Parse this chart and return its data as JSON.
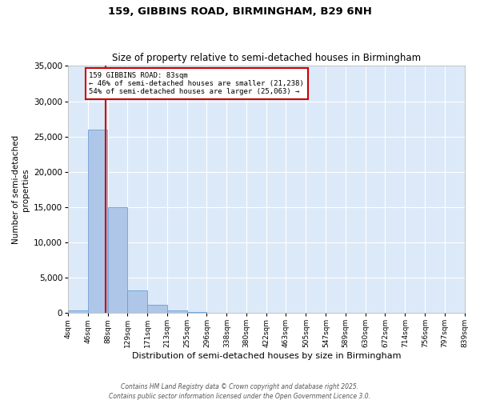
{
  "title_line1": "159, GIBBINS ROAD, BIRMINGHAM, B29 6NH",
  "title_line2": "Size of property relative to semi-detached houses in Birmingham",
  "xlabel": "Distribution of semi-detached houses by size in Birmingham",
  "ylabel": "Number of semi-detached\nproperties",
  "annotation_title": "159 GIBBINS ROAD: 83sqm",
  "annotation_line2": "← 46% of semi-detached houses are smaller (21,238)",
  "annotation_line3": "54% of semi-detached houses are larger (25,063) →",
  "property_size": 83,
  "bin_edges": [
    4,
    46,
    88,
    129,
    171,
    213,
    255,
    296,
    338,
    380,
    422,
    463,
    505,
    547,
    589,
    630,
    672,
    714,
    756,
    797,
    839
  ],
  "bin_labels": [
    "4sqm",
    "46sqm",
    "88sqm",
    "129sqm",
    "171sqm",
    "213sqm",
    "255sqm",
    "296sqm",
    "338sqm",
    "380sqm",
    "422sqm",
    "463sqm",
    "505sqm",
    "547sqm",
    "589sqm",
    "630sqm",
    "672sqm",
    "714sqm",
    "756sqm",
    "797sqm",
    "839sqm"
  ],
  "bar_heights": [
    400,
    26000,
    15000,
    3200,
    1100,
    400,
    180,
    10,
    5,
    2,
    1,
    1,
    0,
    0,
    0,
    0,
    0,
    0,
    0,
    0
  ],
  "bar_color": "#aec6e8",
  "bar_edge_color": "#6a9fd8",
  "vline_color": "#cc0000",
  "vline_x": 83,
  "annotation_box_color": "#cc0000",
  "ylim": [
    0,
    35000
  ],
  "yticks": [
    0,
    5000,
    10000,
    15000,
    20000,
    25000,
    30000,
    35000
  ],
  "plot_bg_color": "#dce9f8",
  "fig_bg_color": "#ffffff",
  "footer_line1": "Contains HM Land Registry data © Crown copyright and database right 2025.",
  "footer_line2": "Contains public sector information licensed under the Open Government Licence 3.0."
}
